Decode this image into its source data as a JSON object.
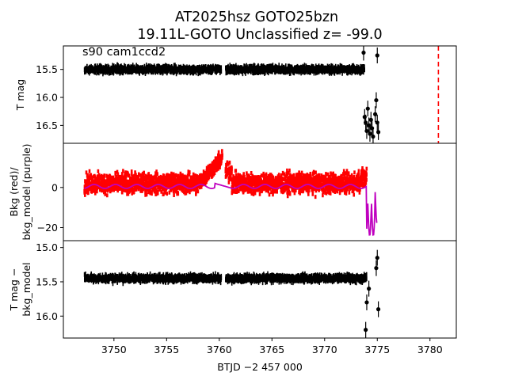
{
  "title_line1": "AT2025hsz  GOTO25bzn",
  "title_line2": "19.11L-GOTO Unclassified z= -99.0",
  "annotation": "s90 cam1ccd2",
  "xlabel": "BTJD −2 457 000",
  "x_ticks": [
    "3750",
    "3755",
    "3760",
    "3765",
    "3770",
    "3775",
    "3780"
  ],
  "colors": {
    "lightcurve": "#000000",
    "background": "#ff0000",
    "bkg_model": "#bf00bf",
    "marker_line": "#ff0000"
  },
  "chart_data": [
    {
      "panel": "top",
      "type": "scatter",
      "ylabel": "T mag",
      "y_inverted": true,
      "xlim": [
        3745.2,
        3782.5
      ],
      "ylim": [
        16.82,
        15.08
      ],
      "y_ticks": [
        "15.5",
        "16.0",
        "16.5"
      ],
      "x_gap": [
        3760.2,
        3760.6
      ],
      "series": [
        {
          "x_range": [
            3747.2,
            3773.8
          ],
          "y_center": 15.5,
          "y_spread": 0.07
        }
      ],
      "late_points": [
        {
          "x": 3773.8,
          "y": 16.35
        },
        {
          "x": 3773.9,
          "y": 16.45
        },
        {
          "x": 3774.0,
          "y": 16.6
        },
        {
          "x": 3774.1,
          "y": 16.2
        },
        {
          "x": 3774.2,
          "y": 16.5
        },
        {
          "x": 3774.3,
          "y": 16.65
        },
        {
          "x": 3774.4,
          "y": 16.4
        },
        {
          "x": 3774.5,
          "y": 16.55
        },
        {
          "x": 3774.6,
          "y": 16.7
        },
        {
          "x": 3774.8,
          "y": 16.3
        },
        {
          "x": 3774.9,
          "y": 16.05
        },
        {
          "x": 3775.0,
          "y": 16.45
        },
        {
          "x": 3775.1,
          "y": 16.62
        },
        {
          "x": 3773.7,
          "y": 15.2
        },
        {
          "x": 3775.0,
          "y": 15.25
        }
      ],
      "vline_x": 3780.8
    },
    {
      "panel": "middle",
      "type": "scatter",
      "ylabel": "Bkg (red)/\nbkg_model (purple)",
      "xlim": [
        3745.2,
        3782.5
      ],
      "ylim": [
        -26.5,
        22
      ],
      "y_ticks": [
        "0",
        "−20"
      ],
      "y_tick_values": [
        0,
        -20
      ],
      "series": [
        {
          "name": "Bkg",
          "x_range": [
            3747.2,
            3774.0
          ],
          "y_center": 2,
          "y_spread": 6
        },
        {
          "name": "bkg_model",
          "x_range": [
            3747.2,
            3775.0
          ],
          "y_center": 0.5
        }
      ],
      "events": [
        {
          "x": 3760.0,
          "y_peak": 17
        },
        {
          "x": 3774.5,
          "y_min": -24
        }
      ]
    },
    {
      "panel": "bottom",
      "type": "scatter",
      "ylabel": "T mag −\nbkg_model",
      "y_inverted": true,
      "xlim": [
        3745.2,
        3782.5
      ],
      "ylim": [
        16.32,
        14.9
      ],
      "y_ticks": [
        "15.0",
        "15.5",
        "16.0"
      ],
      "series": [
        {
          "x_range": [
            3747.2,
            3774.0
          ],
          "y_center": 15.45,
          "y_spread": 0.06
        }
      ],
      "late_points": [
        {
          "x": 3773.9,
          "y": 16.2
        },
        {
          "x": 3774.0,
          "y": 15.8
        },
        {
          "x": 3774.2,
          "y": 15.6
        },
        {
          "x": 3775.0,
          "y": 15.15
        },
        {
          "x": 3775.1,
          "y": 15.9
        },
        {
          "x": 3774.9,
          "y": 15.3
        }
      ]
    }
  ]
}
